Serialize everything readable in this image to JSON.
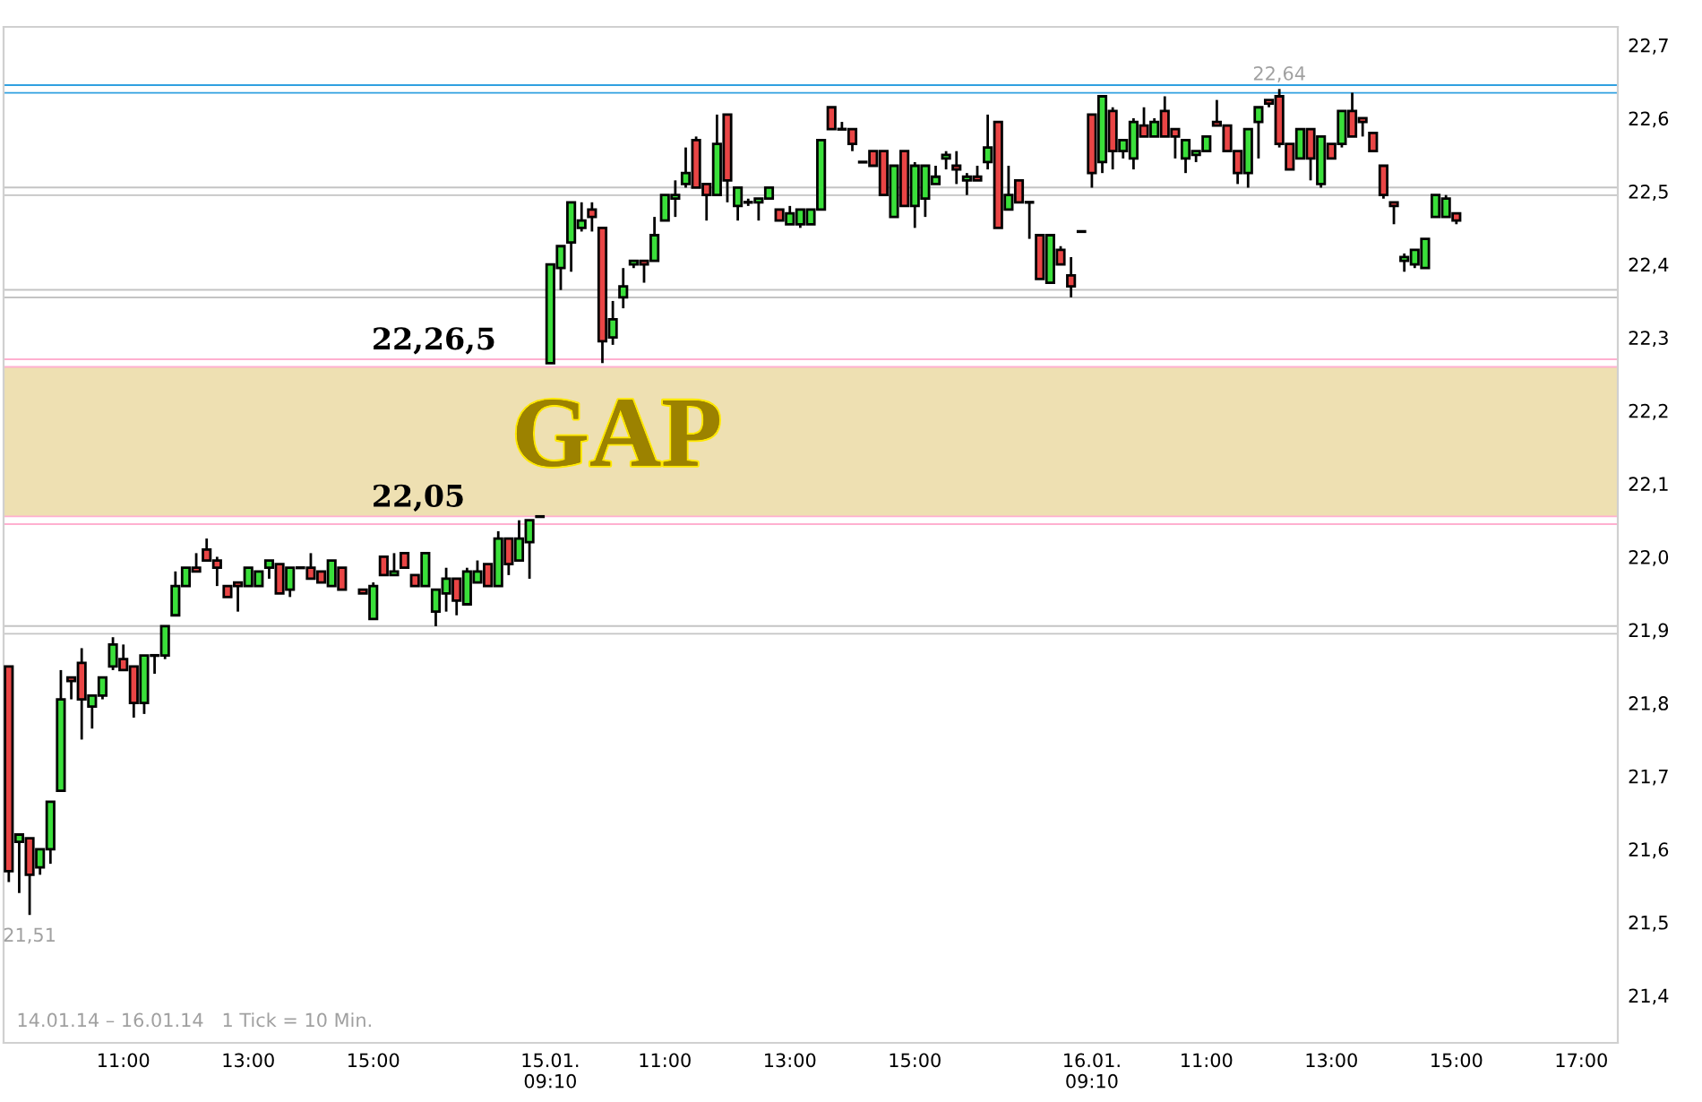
{
  "chart_data": {
    "type": "candlestick",
    "categories": [
      null,
      null,
      null,
      null,
      null,
      null,
      null,
      null,
      null,
      null,
      null,
      "11:00",
      null,
      null,
      null,
      null,
      null,
      null,
      null,
      null,
      null,
      null,
      null,
      "13:00",
      null,
      null,
      null,
      null,
      null,
      null,
      null,
      null,
      null,
      null,
      null,
      "15:00",
      null,
      null,
      null,
      null,
      null,
      null,
      null,
      null,
      null,
      null,
      null,
      null,
      null,
      null,
      null,
      null,
      "15.01.\n09:10",
      null,
      null,
      null,
      null,
      null,
      null,
      null,
      null,
      null,
      null,
      "11:00",
      null,
      null,
      null,
      null,
      null,
      null,
      null,
      null,
      null,
      null,
      null,
      "13:00",
      null,
      null,
      null,
      null,
      null,
      null,
      null,
      null,
      null,
      null,
      null,
      "15:00",
      null,
      null,
      null,
      null,
      null,
      null,
      null,
      null,
      null,
      null,
      null,
      null,
      null,
      null,
      null,
      null,
      "16.01.\n09:10",
      null,
      null,
      null,
      null,
      null,
      null,
      null,
      null,
      null,
      null,
      "11:00",
      null,
      null,
      null,
      null,
      null,
      null,
      null,
      null,
      null,
      null,
      null,
      "13:00",
      null,
      null,
      null,
      null,
      null,
      null,
      null,
      null,
      null,
      null,
      null,
      "15:00",
      null,
      null,
      null,
      null,
      null,
      null,
      null,
      null,
      null,
      null,
      null,
      "17:00",
      null,
      null,
      null
    ],
    "ohlc": [
      [
        21.85,
        21.85,
        21.555,
        21.57
      ],
      [
        21.61,
        21.62,
        21.54,
        21.62
      ],
      [
        21.615,
        21.615,
        21.51,
        21.565
      ],
      [
        21.575,
        21.6,
        21.565,
        21.6
      ],
      [
        21.6,
        21.665,
        21.58,
        21.665
      ],
      [
        21.68,
        21.845,
        21.68,
        21.805
      ],
      [
        21.835,
        21.835,
        21.805,
        21.83
      ],
      [
        21.855,
        21.875,
        21.75,
        21.805
      ],
      [
        21.795,
        21.81,
        21.765,
        21.81
      ],
      [
        21.81,
        21.835,
        21.805,
        21.835
      ],
      [
        21.85,
        21.89,
        21.845,
        21.88
      ],
      [
        21.86,
        21.88,
        21.845,
        21.845
      ],
      [
        21.85,
        21.85,
        21.78,
        21.8
      ],
      [
        21.8,
        21.865,
        21.785,
        21.865
      ],
      [
        21.865,
        21.865,
        21.84,
        21.865
      ],
      [
        21.865,
        21.905,
        21.86,
        21.905
      ],
      [
        21.92,
        21.98,
        21.92,
        21.96
      ],
      [
        21.96,
        21.985,
        21.96,
        21.985
      ],
      [
        21.985,
        22.005,
        21.98,
        21.98
      ],
      [
        22.01,
        22.025,
        21.995,
        21.995
      ],
      [
        21.995,
        22.0,
        21.96,
        21.985
      ],
      [
        21.96,
        21.96,
        21.945,
        21.945
      ],
      [
        21.965,
        21.965,
        21.925,
        21.96
      ],
      [
        21.96,
        21.985,
        21.96,
        21.985
      ],
      [
        21.96,
        21.98,
        21.96,
        21.98
      ],
      [
        21.985,
        21.995,
        21.97,
        21.995
      ],
      [
        21.99,
        21.99,
        21.95,
        21.95
      ],
      [
        21.955,
        21.985,
        21.945,
        21.985
      ],
      [
        21.985,
        21.985,
        21.985,
        21.985
      ],
      [
        21.985,
        22.005,
        21.97,
        21.97
      ],
      [
        21.98,
        21.98,
        21.965,
        21.965
      ],
      [
        21.96,
        21.995,
        21.96,
        21.995
      ],
      [
        21.985,
        21.985,
        21.955,
        21.955
      ],
      null,
      [
        21.955,
        21.955,
        21.95,
        21.95
      ],
      [
        21.915,
        21.965,
        21.915,
        21.96
      ],
      [
        22.0,
        22.0,
        21.975,
        21.975
      ],
      [
        21.975,
        22.005,
        21.975,
        21.98
      ],
      [
        22.005,
        22.005,
        21.985,
        21.985
      ],
      [
        21.975,
        21.975,
        21.96,
        21.96
      ],
      [
        21.96,
        22.005,
        21.96,
        22.005
      ],
      [
        21.925,
        21.955,
        21.905,
        21.955
      ],
      [
        21.95,
        21.985,
        21.925,
        21.97
      ],
      [
        21.97,
        21.97,
        21.92,
        21.94
      ],
      [
        21.935,
        21.985,
        21.935,
        21.98
      ],
      [
        21.965,
        21.995,
        21.965,
        21.98
      ],
      [
        21.99,
        21.99,
        21.96,
        21.96
      ],
      [
        21.96,
        22.035,
        21.96,
        22.025
      ],
      [
        22.025,
        22.025,
        21.975,
        21.99
      ],
      [
        21.995,
        22.05,
        21.995,
        22.025
      ],
      [
        22.02,
        22.05,
        21.97,
        22.05
      ],
      [
        22.055,
        22.055,
        22.055,
        22.055
      ],
      [
        22.265,
        22.4,
        22.265,
        22.4
      ],
      [
        22.395,
        22.425,
        22.365,
        22.425
      ],
      [
        22.43,
        22.485,
        22.39,
        22.485
      ],
      [
        22.45,
        22.485,
        22.445,
        22.46
      ],
      [
        22.475,
        22.485,
        22.445,
        22.465
      ],
      [
        22.45,
        22.45,
        22.265,
        22.295
      ],
      [
        22.3,
        22.35,
        22.29,
        22.325
      ],
      [
        22.355,
        22.395,
        22.34,
        22.37
      ],
      [
        22.4,
        22.405,
        22.395,
        22.405
      ],
      [
        22.405,
        22.405,
        22.375,
        22.4
      ],
      [
        22.405,
        22.465,
        22.405,
        22.44
      ],
      [
        22.46,
        22.495,
        22.46,
        22.495
      ],
      [
        22.49,
        22.515,
        22.465,
        22.495
      ],
      [
        22.51,
        22.56,
        22.505,
        22.525
      ],
      [
        22.57,
        22.575,
        22.505,
        22.505
      ],
      [
        22.51,
        22.51,
        22.46,
        22.495
      ],
      [
        22.495,
        22.605,
        22.495,
        22.565
      ],
      [
        22.605,
        22.605,
        22.485,
        22.515
      ],
      [
        22.48,
        22.505,
        22.46,
        22.505
      ],
      [
        22.485,
        22.49,
        22.48,
        22.485
      ],
      [
        22.485,
        22.49,
        22.46,
        22.49
      ],
      [
        22.49,
        22.505,
        22.49,
        22.505
      ],
      [
        22.475,
        22.475,
        22.46,
        22.46
      ],
      [
        22.455,
        22.48,
        22.455,
        22.47
      ],
      [
        22.455,
        22.475,
        22.45,
        22.475
      ],
      [
        22.455,
        22.475,
        22.455,
        22.475
      ],
      [
        22.475,
        22.57,
        22.475,
        22.57
      ],
      [
        22.615,
        22.615,
        22.585,
        22.585
      ],
      [
        22.585,
        22.595,
        22.585,
        22.585
      ],
      [
        22.585,
        22.585,
        22.555,
        22.565
      ],
      [
        22.54,
        22.54,
        22.54,
        22.54
      ],
      [
        22.555,
        22.555,
        22.535,
        22.535
      ],
      [
        22.555,
        22.555,
        22.495,
        22.495
      ],
      [
        22.465,
        22.535,
        22.465,
        22.535
      ],
      [
        22.555,
        22.555,
        22.48,
        22.48
      ],
      [
        22.48,
        22.54,
        22.45,
        22.535
      ],
      [
        22.49,
        22.535,
        22.465,
        22.535
      ],
      [
        22.51,
        22.535,
        22.51,
        22.52
      ],
      [
        22.545,
        22.555,
        22.53,
        22.55
      ],
      [
        22.535,
        22.555,
        22.51,
        22.53
      ],
      [
        22.515,
        22.525,
        22.495,
        22.52
      ],
      [
        22.52,
        22.535,
        22.515,
        22.515
      ],
      [
        22.54,
        22.605,
        22.53,
        22.56
      ],
      [
        22.595,
        22.595,
        22.45,
        22.45
      ],
      [
        22.475,
        22.535,
        22.475,
        22.495
      ],
      [
        22.515,
        22.515,
        22.485,
        22.485
      ],
      [
        22.485,
        22.485,
        22.435,
        22.485
      ],
      [
        22.44,
        22.44,
        22.38,
        22.38
      ],
      [
        22.375,
        22.44,
        22.375,
        22.44
      ],
      [
        22.42,
        22.425,
        22.4,
        22.4
      ],
      [
        22.385,
        22.41,
        22.355,
        22.37
      ],
      [
        22.445,
        22.445,
        22.445,
        22.445
      ],
      [
        22.605,
        22.605,
        22.505,
        22.525
      ],
      [
        22.54,
        22.63,
        22.525,
        22.63
      ],
      [
        22.61,
        22.615,
        22.53,
        22.555
      ],
      [
        22.555,
        22.57,
        22.545,
        22.57
      ],
      [
        22.545,
        22.6,
        22.53,
        22.595
      ],
      [
        22.59,
        22.615,
        22.575,
        22.575
      ],
      [
        22.575,
        22.6,
        22.575,
        22.595
      ],
      [
        22.61,
        22.63,
        22.575,
        22.575
      ],
      [
        22.585,
        22.585,
        22.545,
        22.575
      ],
      [
        22.545,
        22.57,
        22.525,
        22.57
      ],
      [
        22.55,
        22.555,
        22.54,
        22.555
      ],
      [
        22.555,
        22.575,
        22.555,
        22.575
      ],
      [
        22.595,
        22.625,
        22.59,
        22.59
      ],
      [
        22.59,
        22.59,
        22.555,
        22.555
      ],
      [
        22.555,
        22.555,
        22.51,
        22.525
      ],
      [
        22.525,
        22.585,
        22.505,
        22.585
      ],
      [
        22.595,
        22.615,
        22.545,
        22.615
      ],
      [
        22.625,
        22.625,
        22.615,
        22.62
      ],
      [
        22.63,
        22.64,
        22.56,
        22.565
      ],
      [
        22.565,
        22.565,
        22.53,
        22.53
      ],
      [
        22.545,
        22.585,
        22.545,
        22.585
      ],
      [
        22.585,
        22.585,
        22.515,
        22.545
      ],
      [
        22.51,
        22.575,
        22.505,
        22.575
      ],
      [
        22.565,
        22.565,
        22.545,
        22.545
      ],
      [
        22.565,
        22.61,
        22.56,
        22.61
      ],
      [
        22.61,
        22.635,
        22.575,
        22.575
      ],
      [
        22.6,
        22.6,
        22.575,
        22.595
      ],
      [
        22.58,
        22.58,
        22.555,
        22.555
      ],
      [
        22.535,
        22.535,
        22.49,
        22.495
      ],
      [
        22.485,
        22.485,
        22.455,
        22.48
      ],
      [
        22.405,
        22.415,
        22.39,
        22.41
      ],
      [
        22.4,
        22.42,
        22.395,
        22.42
      ],
      [
        22.395,
        22.435,
        22.395,
        22.435
      ],
      [
        22.465,
        22.495,
        22.465,
        22.495
      ],
      [
        22.465,
        22.495,
        22.465,
        22.49
      ],
      [
        22.47,
        22.47,
        22.455,
        22.46
      ],
      null,
      null,
      null,
      null,
      null,
      null,
      null,
      null,
      null,
      null,
      null,
      null,
      null,
      null,
      null
    ],
    "colors": [
      "#e94545",
      "#3adf3a",
      "#e94545",
      "#3adf3a",
      "#3adf3a",
      "#3adf3a",
      "#e94545",
      "#e94545",
      "#3adf3a",
      "#3adf3a",
      "#3adf3a",
      "#e94545",
      "#e94545",
      "#3adf3a",
      "#000000",
      "#3adf3a",
      "#3adf3a",
      "#3adf3a",
      "#e94545",
      "#e94545",
      "#e94545",
      "#e94545",
      "#e94545",
      "#3adf3a",
      "#3adf3a",
      "#3adf3a",
      "#e94545",
      "#3adf3a",
      "#000000",
      "#e94545",
      "#e94545",
      "#3adf3a",
      "#e94545",
      null,
      "#e94545",
      "#3adf3a",
      "#e94545",
      "#3adf3a",
      "#e94545",
      "#e94545",
      "#3adf3a",
      "#3adf3a",
      "#3adf3a",
      "#e94545",
      "#3adf3a",
      "#3adf3a",
      "#e94545",
      "#3adf3a",
      "#e94545",
      "#3adf3a",
      "#3adf3a",
      "#000000",
      "#3adf3a",
      "#3adf3a",
      "#3adf3a",
      "#3adf3a",
      "#e94545",
      "#e94545",
      "#3adf3a",
      "#3adf3a",
      "#3adf3a",
      "#e94545",
      "#3adf3a",
      "#3adf3a",
      "#3adf3a",
      "#3adf3a",
      "#e94545",
      "#e94545",
      "#3adf3a",
      "#e94545",
      "#3adf3a",
      "#000000",
      "#3adf3a",
      "#3adf3a",
      "#e94545",
      "#3adf3a",
      "#3adf3a",
      "#3adf3a",
      "#3adf3a",
      "#e94545",
      "#000000",
      "#e94545",
      "#000000",
      "#e94545",
      "#e94545",
      "#3adf3a",
      "#e94545",
      "#3adf3a",
      "#3adf3a",
      "#3adf3a",
      "#3adf3a",
      "#e94545",
      "#3adf3a",
      "#e94545",
      "#3adf3a",
      "#e94545",
      "#3adf3a",
      "#e94545",
      "#000000",
      "#e94545",
      "#3adf3a",
      "#e94545",
      "#e94545",
      "#000000",
      "#e94545",
      "#3adf3a",
      "#e94545",
      "#3adf3a",
      "#3adf3a",
      "#e94545",
      "#3adf3a",
      "#e94545",
      "#e94545",
      "#3adf3a",
      "#3adf3a",
      "#3adf3a",
      "#e94545",
      "#e94545",
      "#e94545",
      "#3adf3a",
      "#3adf3a",
      "#e94545",
      "#e94545",
      "#e94545",
      "#3adf3a",
      "#e94545",
      "#3adf3a",
      "#e94545",
      "#3adf3a",
      "#e94545",
      "#e94545",
      "#e94545",
      "#e94545",
      "#e94545",
      "#3adf3a",
      "#3adf3a",
      "#3adf3a",
      "#3adf3a",
      "#3adf3a",
      "#e94545",
      null,
      null,
      null,
      null,
      null,
      null,
      null,
      null,
      null,
      null,
      null,
      null,
      null,
      null,
      null
    ],
    "ylim": [
      21.335,
      22.725
    ],
    "yticks": [
      {
        "value": 21.4,
        "label": "21,4"
      },
      {
        "value": 21.5,
        "label": "21,5"
      },
      {
        "value": 21.6,
        "label": "21,6"
      },
      {
        "value": 21.7,
        "label": "21,7"
      },
      {
        "value": 21.8,
        "label": "21,8"
      },
      {
        "value": 21.9,
        "label": "21,9"
      },
      {
        "value": 22.0,
        "label": "22,0"
      },
      {
        "value": 22.1,
        "label": "22,1"
      },
      {
        "value": 22.2,
        "label": "22,2"
      },
      {
        "value": 22.3,
        "label": "22,3"
      },
      {
        "value": 22.4,
        "label": "22,4"
      },
      {
        "value": 22.5,
        "label": "22,5"
      },
      {
        "value": 22.6,
        "label": "22,6"
      },
      {
        "value": 22.7,
        "label": "22,7"
      }
    ],
    "ref_lines": [
      {
        "axis": "y",
        "value": 21.9,
        "color": "#c4c4c4"
      },
      {
        "axis": "y",
        "value": 22.05,
        "label": "22,05",
        "color": "#ffb0d0"
      },
      {
        "axis": "y",
        "value": 22.265,
        "label": "22,26,5",
        "color": "#ffb0d0"
      },
      {
        "axis": "y",
        "value": 22.36,
        "color": "#c4c4c4"
      },
      {
        "axis": "y",
        "value": 22.5,
        "color": "#c4c4c4"
      },
      {
        "axis": "y",
        "value": 22.64,
        "color": "#30a0e0"
      }
    ],
    "bands": [
      {
        "axis": "y",
        "from": 22.05,
        "to": 22.265,
        "label": "GAP",
        "color": "#eee0b2"
      }
    ],
    "annotations": [
      {
        "text": "21,51",
        "y": 21.51
      },
      {
        "text": "22,64",
        "y": 22.64
      },
      "14.01.14 – 16.01.14   1 Tick = 10 Min."
    ]
  }
}
